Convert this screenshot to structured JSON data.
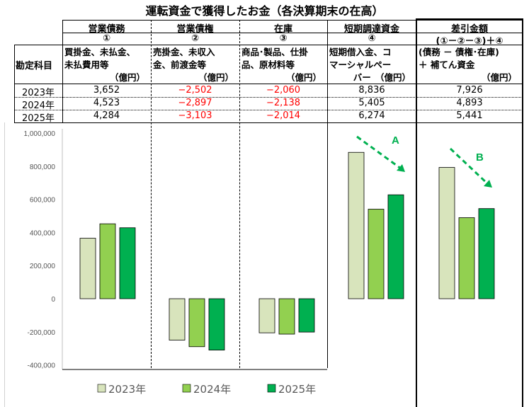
{
  "title": "運転資金で獲得したお金（各決算期末の在高）",
  "row_header": "勘定科目",
  "columns": [
    {
      "name": "営業債務",
      "num": "①",
      "desc": [
        "買掛金、未払金、",
        "未払費用等"
      ],
      "unit": "（億円）"
    },
    {
      "name": "営業債権",
      "num": "②",
      "desc": [
        "売掛金、未収入",
        "金、前渡金等"
      ],
      "unit": "（億円）"
    },
    {
      "name": "在庫",
      "num": "③",
      "desc": [
        "商品･製品、仕掛",
        "品、原材料等"
      ],
      "unit": "（億円）"
    },
    {
      "name": "短期調達資金",
      "num": "④",
      "desc": [
        "短期借入金、コ",
        "マーシャルペー"
      ],
      "unit": "バー　（億円）"
    },
    {
      "name": "差引金額",
      "num": "(①－②－③)＋④",
      "desc": [
        "(債務 － 債権･在庫)",
        "＋ 補てん資金"
      ],
      "unit": "（億円）"
    }
  ],
  "rows": [
    {
      "year": "2023年",
      "values": [
        "3,652",
        "−2,502",
        "−2,060",
        "8,836",
        "7,926"
      ]
    },
    {
      "year": "2024年",
      "values": [
        "4,523",
        "−2,897",
        "−2,138",
        "5,405",
        "4,893"
      ]
    },
    {
      "year": "2025年",
      "values": [
        "4,284",
        "−3,103",
        "−2,014",
        "6,274",
        "5,441"
      ]
    }
  ],
  "annotations": {
    "a": "A",
    "b": "B"
  },
  "chart_data": {
    "type": "bar",
    "categories": [
      "営業債務",
      "営業債権",
      "在庫",
      "短期調達資金",
      "差引金額"
    ],
    "series": [
      {
        "name": "2023年",
        "color": "#d8e4bc",
        "values": [
          365200,
          -250200,
          -206000,
          883600,
          792600
        ]
      },
      {
        "name": "2024年",
        "color": "#92d050",
        "values": [
          452300,
          -289700,
          -213800,
          540500,
          489300
        ]
      },
      {
        "name": "2025年",
        "color": "#00b050",
        "values": [
          428400,
          -310300,
          -201400,
          627400,
          544100
        ]
      }
    ],
    "ylim": [
      -400000,
      1000000
    ],
    "yticks": [
      "1,000,000",
      "800,000",
      "600,000",
      "400,000",
      "200,000",
      "0",
      "-200,000",
      "-400,000"
    ],
    "legend": "bottom"
  }
}
